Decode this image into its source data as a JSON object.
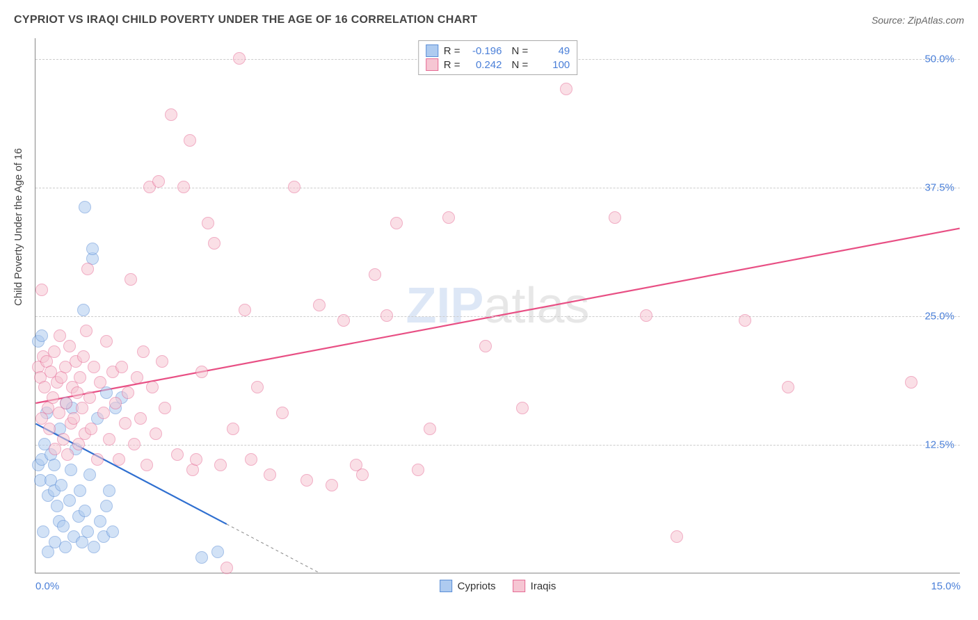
{
  "header": {
    "title": "CYPRIOT VS IRAQI CHILD POVERTY UNDER THE AGE OF 16 CORRELATION CHART",
    "source_prefix": "Source: ",
    "source_name": "ZipAtlas.com"
  },
  "watermark": {
    "part1": "ZIP",
    "part2": "atlas"
  },
  "y_axis": {
    "label": "Child Poverty Under the Age of 16"
  },
  "chart": {
    "type": "scatter",
    "xlim": [
      0,
      15
    ],
    "ylim": [
      0,
      52
    ],
    "x_ticks": [
      {
        "v": 0,
        "label": "0.0%"
      },
      {
        "v": 15,
        "label": "15.0%"
      }
    ],
    "y_ticks": [
      {
        "v": 12.5,
        "label": "12.5%"
      },
      {
        "v": 25.0,
        "label": "25.0%"
      },
      {
        "v": 37.5,
        "label": "37.5%"
      },
      {
        "v": 50.0,
        "label": "50.0%"
      }
    ],
    "grid_color": "#cccccc",
    "axis_color": "#888888",
    "background_color": "#ffffff",
    "marker_radius": 9,
    "marker_opacity": 0.55,
    "marker_border_width": 1.5,
    "series": [
      {
        "name": "Cypriots",
        "fill": "#aecbf0",
        "stroke": "#5b8ed6",
        "trend": {
          "x1": 0,
          "y1": 14.5,
          "x2": 4.6,
          "y2": 0,
          "color": "#2f6fd0",
          "width": 2.2,
          "dash_after": 3.1
        },
        "points": [
          [
            0.05,
            22.5
          ],
          [
            0.05,
            10.5
          ],
          [
            0.08,
            9.0
          ],
          [
            0.1,
            23.0
          ],
          [
            0.1,
            11.0
          ],
          [
            0.12,
            4.0
          ],
          [
            0.15,
            12.5
          ],
          [
            0.18,
            15.5
          ],
          [
            0.2,
            7.5
          ],
          [
            0.2,
            2.0
          ],
          [
            0.25,
            9.0
          ],
          [
            0.25,
            11.5
          ],
          [
            0.3,
            8.0
          ],
          [
            0.3,
            10.5
          ],
          [
            0.32,
            3.0
          ],
          [
            0.35,
            6.5
          ],
          [
            0.38,
            5.0
          ],
          [
            0.4,
            14.0
          ],
          [
            0.42,
            8.5
          ],
          [
            0.45,
            4.5
          ],
          [
            0.48,
            2.5
          ],
          [
            0.5,
            16.5
          ],
          [
            0.55,
            7.0
          ],
          [
            0.58,
            10.0
          ],
          [
            0.6,
            16.0
          ],
          [
            0.62,
            3.5
          ],
          [
            0.65,
            12.0
          ],
          [
            0.7,
            5.5
          ],
          [
            0.72,
            8.0
          ],
          [
            0.75,
            3.0
          ],
          [
            0.78,
            25.5
          ],
          [
            0.8,
            6.0
          ],
          [
            0.8,
            35.5
          ],
          [
            0.85,
            4.0
          ],
          [
            0.88,
            9.5
          ],
          [
            0.92,
            30.5
          ],
          [
            0.92,
            31.5
          ],
          [
            0.95,
            2.5
          ],
          [
            1.0,
            15.0
          ],
          [
            1.05,
            5.0
          ],
          [
            1.1,
            3.5
          ],
          [
            1.15,
            17.5
          ],
          [
            1.15,
            6.5
          ],
          [
            1.2,
            8.0
          ],
          [
            1.25,
            4.0
          ],
          [
            1.3,
            16.0
          ],
          [
            1.4,
            17.0
          ],
          [
            2.7,
            1.5
          ],
          [
            2.95,
            2.0
          ]
        ]
      },
      {
        "name": "Iraqis",
        "fill": "#f6c6d3",
        "stroke": "#e66b95",
        "trend": {
          "x1": 0,
          "y1": 16.5,
          "x2": 15,
          "y2": 33.5,
          "color": "#e84f84",
          "width": 2.2
        },
        "points": [
          [
            0.05,
            20.0
          ],
          [
            0.08,
            19.0
          ],
          [
            0.1,
            15.0
          ],
          [
            0.1,
            27.5
          ],
          [
            0.12,
            21.0
          ],
          [
            0.15,
            18.0
          ],
          [
            0.18,
            20.5
          ],
          [
            0.2,
            16.0
          ],
          [
            0.22,
            14.0
          ],
          [
            0.25,
            19.5
          ],
          [
            0.28,
            17.0
          ],
          [
            0.3,
            21.5
          ],
          [
            0.32,
            12.0
          ],
          [
            0.35,
            18.5
          ],
          [
            0.38,
            15.5
          ],
          [
            0.4,
            23.0
          ],
          [
            0.42,
            19.0
          ],
          [
            0.45,
            13.0
          ],
          [
            0.48,
            20.0
          ],
          [
            0.5,
            16.5
          ],
          [
            0.52,
            11.5
          ],
          [
            0.55,
            22.0
          ],
          [
            0.58,
            14.5
          ],
          [
            0.6,
            18.0
          ],
          [
            0.62,
            15.0
          ],
          [
            0.65,
            20.5
          ],
          [
            0.68,
            17.5
          ],
          [
            0.7,
            12.5
          ],
          [
            0.72,
            19.0
          ],
          [
            0.75,
            16.0
          ],
          [
            0.78,
            21.0
          ],
          [
            0.8,
            13.5
          ],
          [
            0.82,
            23.5
          ],
          [
            0.85,
            29.5
          ],
          [
            0.88,
            17.0
          ],
          [
            0.9,
            14.0
          ],
          [
            0.95,
            20.0
          ],
          [
            1.0,
            11.0
          ],
          [
            1.05,
            18.5
          ],
          [
            1.1,
            15.5
          ],
          [
            1.15,
            22.5
          ],
          [
            1.2,
            13.0
          ],
          [
            1.25,
            19.5
          ],
          [
            1.3,
            16.5
          ],
          [
            1.35,
            11.0
          ],
          [
            1.4,
            20.0
          ],
          [
            1.45,
            14.5
          ],
          [
            1.5,
            17.5
          ],
          [
            1.55,
            28.5
          ],
          [
            1.6,
            12.5
          ],
          [
            1.65,
            19.0
          ],
          [
            1.7,
            15.0
          ],
          [
            1.75,
            21.5
          ],
          [
            1.8,
            10.5
          ],
          [
            1.85,
            37.5
          ],
          [
            1.9,
            18.0
          ],
          [
            1.95,
            13.5
          ],
          [
            2.0,
            38.0
          ],
          [
            2.05,
            20.5
          ],
          [
            2.1,
            16.0
          ],
          [
            2.2,
            44.5
          ],
          [
            2.3,
            11.5
          ],
          [
            2.4,
            37.5
          ],
          [
            2.5,
            42.0
          ],
          [
            2.55,
            10.0
          ],
          [
            2.6,
            11.0
          ],
          [
            2.7,
            19.5
          ],
          [
            2.8,
            34.0
          ],
          [
            2.9,
            32.0
          ],
          [
            3.0,
            10.5
          ],
          [
            3.1,
            0.5
          ],
          [
            3.2,
            14.0
          ],
          [
            3.3,
            50.0
          ],
          [
            3.4,
            25.5
          ],
          [
            3.5,
            11.0
          ],
          [
            3.6,
            18.0
          ],
          [
            3.8,
            9.5
          ],
          [
            4.0,
            15.5
          ],
          [
            4.2,
            37.5
          ],
          [
            4.4,
            9.0
          ],
          [
            4.6,
            26.0
          ],
          [
            4.8,
            8.5
          ],
          [
            5.0,
            24.5
          ],
          [
            5.2,
            10.5
          ],
          [
            5.3,
            9.5
          ],
          [
            5.5,
            29.0
          ],
          [
            5.7,
            25.0
          ],
          [
            5.85,
            34.0
          ],
          [
            6.2,
            10.0
          ],
          [
            6.4,
            14.0
          ],
          [
            6.7,
            34.5
          ],
          [
            7.3,
            22.0
          ],
          [
            7.9,
            16.0
          ],
          [
            8.6,
            47.0
          ],
          [
            9.4,
            34.5
          ],
          [
            9.9,
            25.0
          ],
          [
            10.4,
            3.5
          ],
          [
            11.5,
            24.5
          ],
          [
            12.2,
            18.0
          ],
          [
            14.2,
            18.5
          ]
        ]
      }
    ]
  },
  "legend_top": {
    "rows": [
      {
        "swatch_fill": "#aecbf0",
        "swatch_stroke": "#5b8ed6",
        "r_label": "R =",
        "r": "-0.196",
        "n_label": "N =",
        "n": "49"
      },
      {
        "swatch_fill": "#f6c6d3",
        "swatch_stroke": "#e66b95",
        "r_label": "R =",
        "r": "0.242",
        "n_label": "N =",
        "n": "100"
      }
    ]
  },
  "legend_bottom": {
    "items": [
      {
        "swatch_fill": "#aecbf0",
        "swatch_stroke": "#5b8ed6",
        "label": "Cypriots"
      },
      {
        "swatch_fill": "#f6c6d3",
        "swatch_stroke": "#e66b95",
        "label": "Iraqis"
      }
    ]
  }
}
